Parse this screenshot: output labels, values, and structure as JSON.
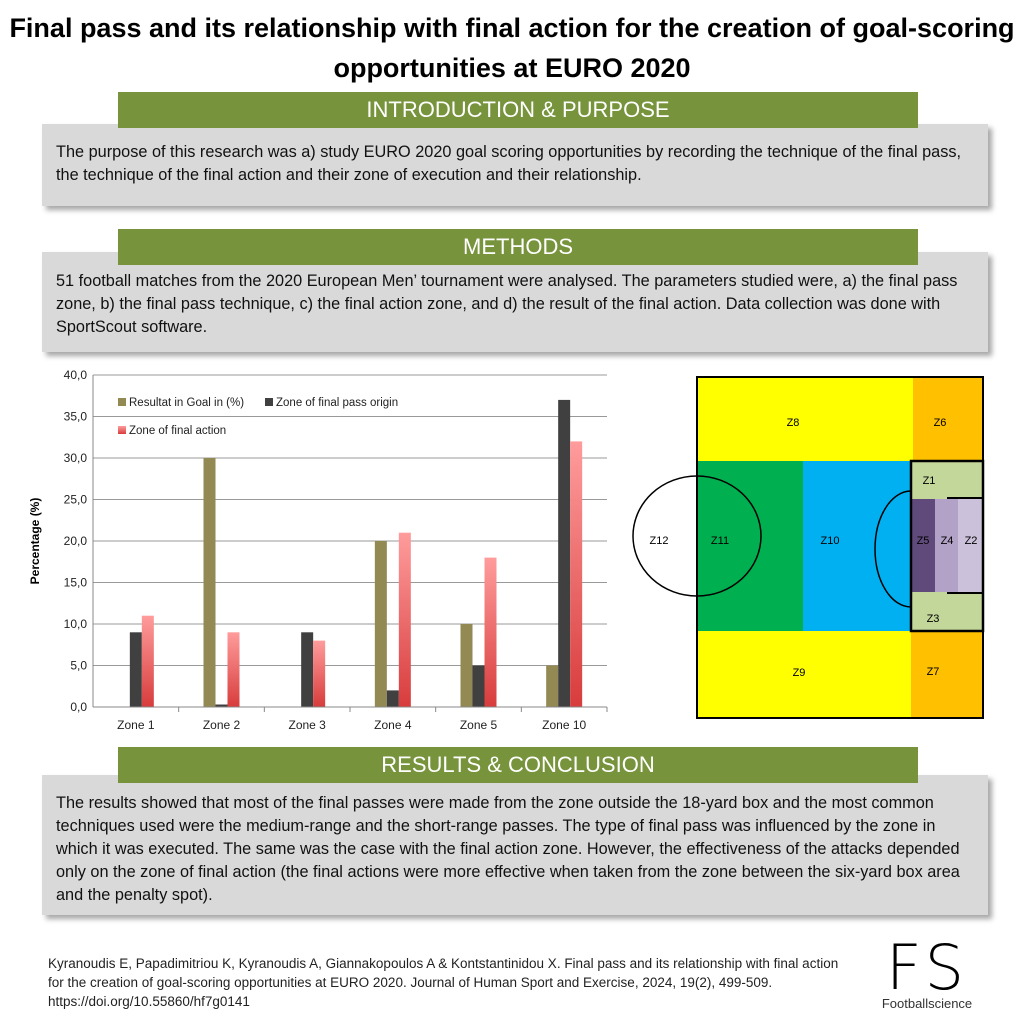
{
  "title": "Final pass and its relationship with final action for the creation of goal-scoring opportunities at EURO 2020",
  "sections": {
    "intro": {
      "heading": "INTRODUCTION & PURPOSE",
      "text": "The purpose of this research was a) study EURO 2020 goal scoring opportunities by recording the technique of the final pass, the technique of the final action and their zone of execution and their relationship."
    },
    "methods": {
      "heading": "METHODS",
      "text": "51 football matches from the 2020 European Men’ tournament were analysed. The parameters studied were, a) the final pass zone, b) the final pass technique, c) the final action zone, and d) the result of the final action. Data collection was done with SportScout software."
    },
    "results": {
      "heading": "RESULTS & CONCLUSION",
      "text": "The results showed that most of the final passes were made from the zone outside the 18-yard box and the most common techniques used were the medium-range and the short-range passes. The  type of final pass was influenced by the zone in which it was executed. The same was the case with the final action zone. However, the effectiveness of the attacks depended only on the zone of final action (the final actions were more effective when taken from the zone between the six-yard box area and the penalty spot)."
    }
  },
  "citation": "Kyranoudis E, Papadimitriou K, Kyranoudis A, Giannakopoulos A & Kontstantinidou X. Final pass and its relationship with final action for the creation of goal-scoring opportunities at EURO 2020. Journal of Human Sport and Exercise, 2024, 19(2), 499-509. https://doi.org/10.55860/hf7g0141",
  "logo": {
    "mark": "FS",
    "name": "Footballscience"
  },
  "pitch_zones": [
    "Z1",
    "Z2",
    "Z3",
    "Z4",
    "Z5",
    "Z6",
    "Z7",
    "Z8",
    "Z9",
    "Z10",
    "Z11",
    "Z12"
  ],
  "colors": {
    "banner": "#77933c",
    "box": "#d9d9d9",
    "goal": "#938953",
    "pass": "#404040",
    "action": "#f08080"
  },
  "chart_data": {
    "type": "bar",
    "title": "",
    "xlabel": "",
    "ylabel": "Percentage (%)",
    "ylim": [
      0,
      40
    ],
    "yticks": [
      "0,0",
      "5,0",
      "10,0",
      "15,0",
      "20,0",
      "25,0",
      "30,0",
      "35,0",
      "40,0"
    ],
    "grid": true,
    "legend": "top-left",
    "categories": [
      "Zone 1",
      "Zone 2",
      "Zone 3",
      "Zone 4",
      "Zone 5",
      "Zone 10"
    ],
    "series": [
      {
        "name": "Resultat in Goal in (%)",
        "color": "#938953",
        "values": [
          0,
          30,
          0,
          20,
          10,
          5
        ]
      },
      {
        "name": "Zone of final pass origin",
        "color": "#404040",
        "values": [
          9,
          0.3,
          9,
          2,
          5,
          37
        ]
      },
      {
        "name": "Zone of final action",
        "color": "#f08080",
        "values": [
          11,
          9,
          8,
          21,
          18,
          32
        ]
      }
    ]
  }
}
